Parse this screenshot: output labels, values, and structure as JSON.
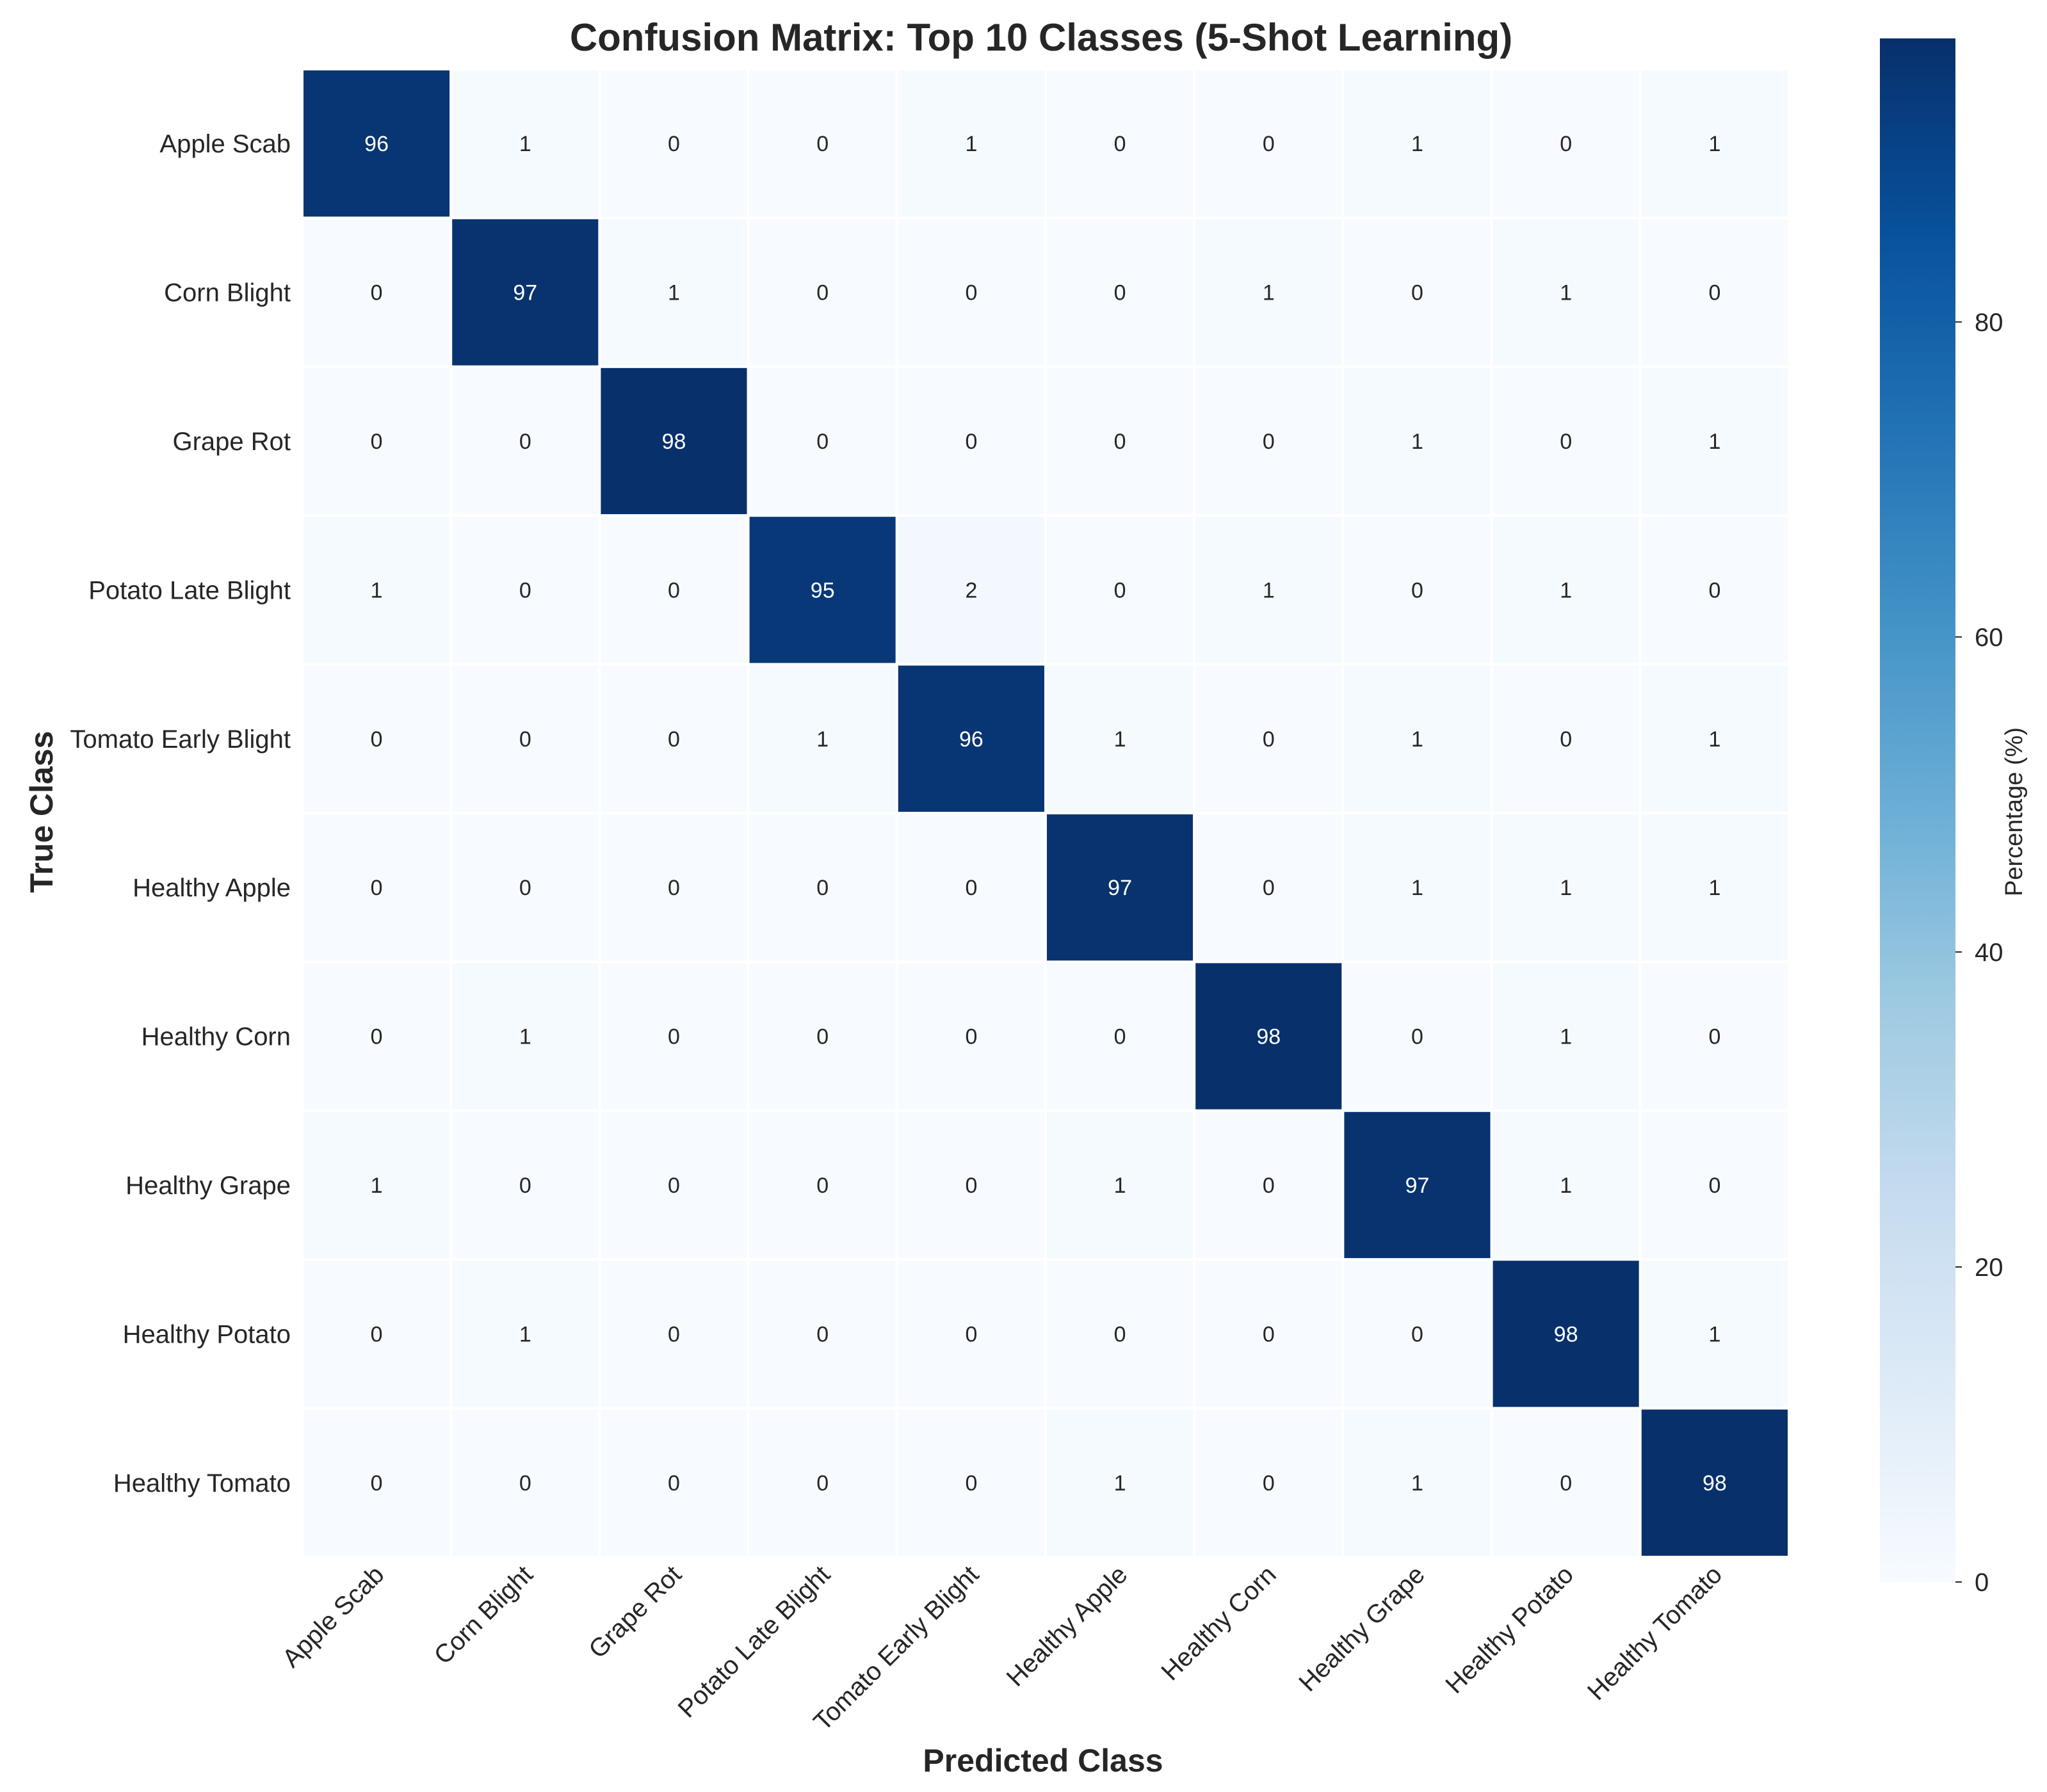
{
  "chart_data": {
    "type": "heatmap",
    "title": "Confusion Matrix: Top 10 Classes (5-Shot Learning)",
    "xlabel": "Predicted Class",
    "ylabel": "True Class",
    "colorbar_label": "Percentage (%)",
    "colorbar_ticks": [
      0,
      20,
      40,
      60,
      80
    ],
    "colormap": "Blues",
    "vmin": 0,
    "vmax": 98,
    "categories": [
      "Apple Scab",
      "Corn Blight",
      "Grape Rot",
      "Potato Late Blight",
      "Tomato Early Blight",
      "Healthy Apple",
      "Healthy Corn",
      "Healthy Grape",
      "Healthy Potato",
      "Healthy Tomato"
    ],
    "matrix": [
      [
        96,
        1,
        0,
        0,
        1,
        0,
        0,
        1,
        0,
        1
      ],
      [
        0,
        97,
        1,
        0,
        0,
        0,
        1,
        0,
        1,
        0
      ],
      [
        0,
        0,
        98,
        0,
        0,
        0,
        0,
        1,
        0,
        1
      ],
      [
        1,
        0,
        0,
        95,
        2,
        0,
        1,
        0,
        1,
        0
      ],
      [
        0,
        0,
        0,
        1,
        96,
        1,
        0,
        1,
        0,
        1
      ],
      [
        0,
        0,
        0,
        0,
        0,
        97,
        0,
        1,
        1,
        1
      ],
      [
        0,
        1,
        0,
        0,
        0,
        0,
        98,
        0,
        1,
        0
      ],
      [
        1,
        0,
        0,
        0,
        0,
        1,
        0,
        97,
        1,
        0
      ],
      [
        0,
        1,
        0,
        0,
        0,
        0,
        0,
        0,
        98,
        1
      ],
      [
        0,
        0,
        0,
        0,
        0,
        1,
        0,
        1,
        0,
        98
      ]
    ]
  }
}
